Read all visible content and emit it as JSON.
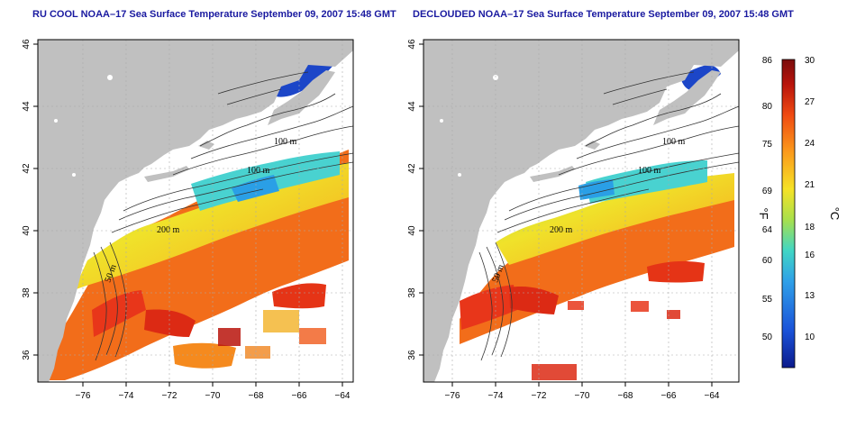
{
  "titles": {
    "left": "RU COOL NOAA–17 Sea Surface Temperature September 09, 2007 15:48 GMT",
    "right": "DECLOUDED NOAA–17 Sea Surface Temperature September 09, 2007 15:48 GMT"
  },
  "axes": {
    "lon_ticks": [
      "−76",
      "−74",
      "−72",
      "−70",
      "−68",
      "−66",
      "−64"
    ],
    "lat_ticks": [
      "36",
      "38",
      "40",
      "42",
      "44",
      "46"
    ]
  },
  "isobaths": {
    "label_100": "100 m",
    "label_200": "200 m",
    "label_50": "50 m"
  },
  "colorbar": {
    "fahrenheit_label": "°F",
    "celsius_label": "°C",
    "f_ticks": [
      "86",
      "80",
      "75",
      "69",
      "64",
      "60",
      "55",
      "50"
    ],
    "c_ticks": [
      "30",
      "27",
      "24",
      "21",
      "18",
      "16",
      "13",
      "10"
    ]
  },
  "colors": {
    "land": "#c0c0c0",
    "frame": "#000000",
    "title": "#1a1aa0",
    "scale": [
      "#0b1a8c",
      "#1a52d8",
      "#2fa0e8",
      "#41d6c4",
      "#a8e04c",
      "#f6e226",
      "#fb9a1c",
      "#ef4a12",
      "#b8140c",
      "#7a0c0c"
    ]
  }
}
